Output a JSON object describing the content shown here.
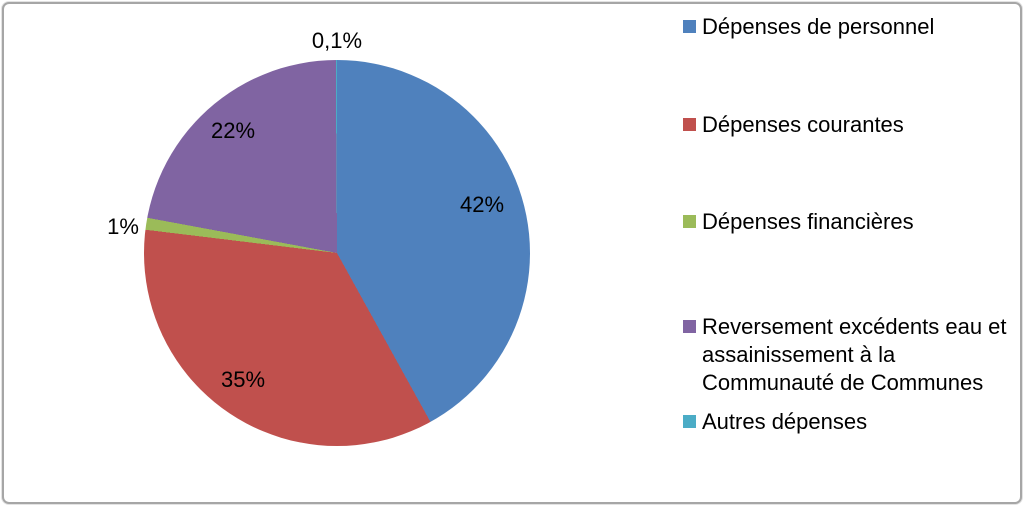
{
  "chart_data": {
    "type": "pie",
    "title": "",
    "legend_position": "right",
    "direction": "clockwise",
    "start_angle_deg": 0,
    "background": "#FFFFFF",
    "frame_border_color": "#A6A6A6",
    "label_text_color": "#000000",
    "slices": [
      {
        "label": "Dépenses de personnel",
        "value_pct": 42,
        "display": "42%",
        "color": "#4F81BD"
      },
      {
        "label": "Dépenses courantes",
        "value_pct": 35,
        "display": "35%",
        "color": "#C0504D"
      },
      {
        "label": "Dépenses financières",
        "value_pct": 1,
        "display": "1%",
        "color": "#9BBB59"
      },
      {
        "label": "Reversement excédents eau et assainissement à la Communauté de Communes",
        "value_pct": 22,
        "display": "22%",
        "color": "#8064A2"
      },
      {
        "label": "Autres dépenses",
        "value_pct": 0.1,
        "display": "0,1%",
        "color": "#4BACC6"
      }
    ]
  }
}
